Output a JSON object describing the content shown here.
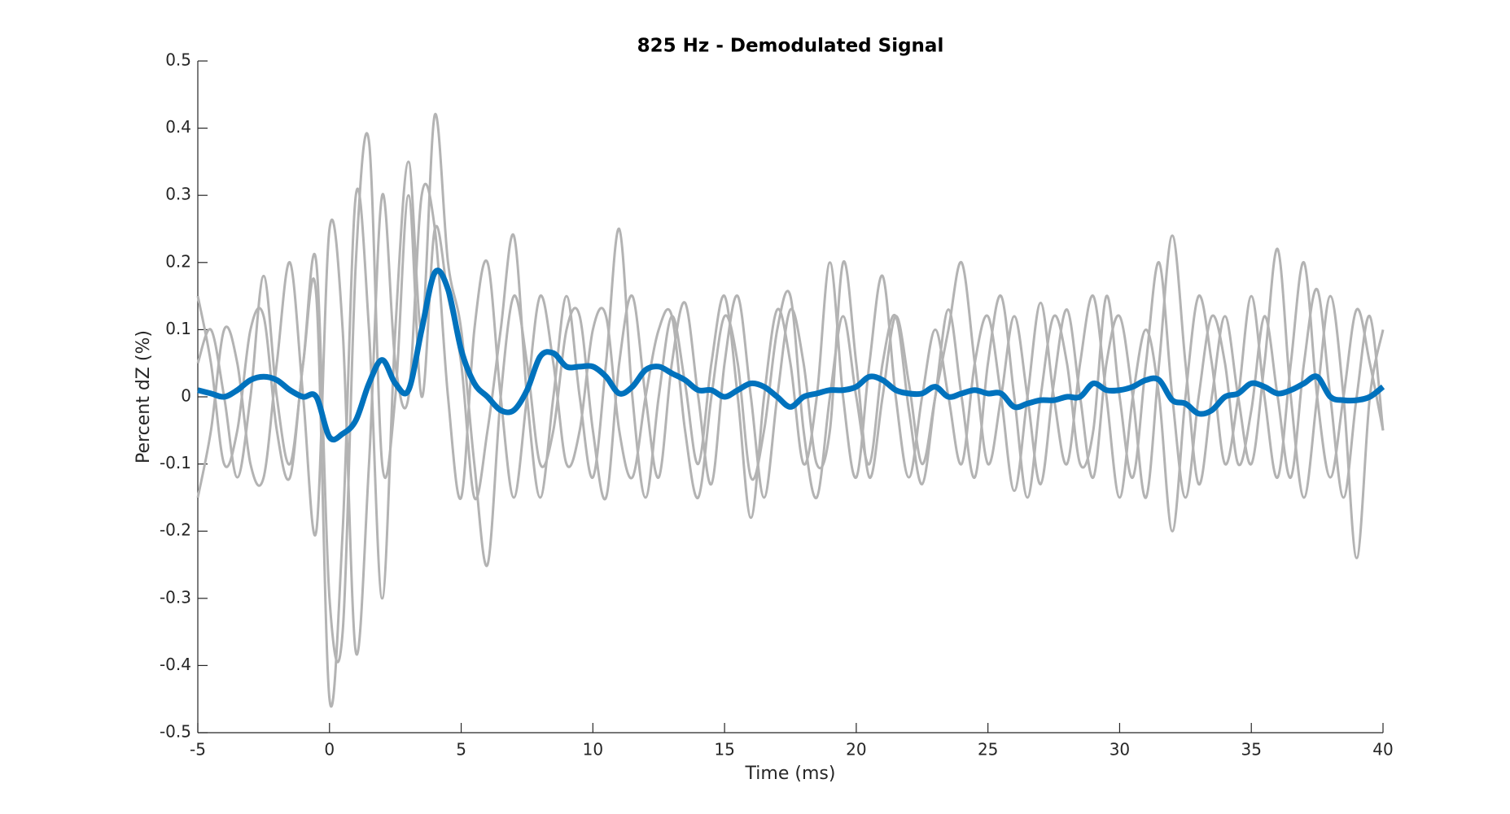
{
  "chart_data": {
    "type": "line",
    "title": "825 Hz - Demodulated Signal",
    "xlabel": "Time (ms)",
    "ylabel": "Percent dZ (%)",
    "xlim": [
      -5,
      40
    ],
    "ylim": [
      -0.5,
      0.5
    ],
    "xticks": [
      -5,
      0,
      5,
      10,
      15,
      20,
      25,
      30,
      35,
      40
    ],
    "yticks": [
      -0.5,
      -0.4,
      -0.3,
      -0.2,
      -0.1,
      0,
      0.1,
      0.2,
      0.3,
      0.4,
      0.5
    ],
    "x": [
      -5,
      -4.5,
      -4,
      -3.5,
      -3,
      -2.5,
      -2,
      -1.5,
      -1,
      -0.5,
      0,
      0.5,
      1,
      1.5,
      2,
      2.5,
      3,
      3.5,
      4,
      4.5,
      5,
      5.5,
      6,
      6.5,
      7,
      7.5,
      8,
      8.5,
      9,
      9.5,
      10,
      10.5,
      11,
      11.5,
      12,
      12.5,
      13,
      13.5,
      14,
      14.5,
      15,
      15.5,
      16,
      16.5,
      17,
      17.5,
      18,
      18.5,
      19,
      19.5,
      20,
      20.5,
      21,
      21.5,
      22,
      22.5,
      23,
      23.5,
      24,
      24.5,
      25,
      25.5,
      26,
      26.5,
      27,
      27.5,
      28,
      28.5,
      29,
      29.5,
      30,
      30.5,
      31,
      31.5,
      32,
      32.5,
      33,
      33.5,
      34,
      34.5,
      35,
      35.5,
      36,
      36.5,
      37,
      37.5,
      38,
      38.5,
      39,
      39.5,
      40
    ],
    "series": [
      {
        "color": "#b3b3b3",
        "values": [
          0.15,
          0.05,
          -0.1,
          -0.05,
          0.1,
          0.12,
          -0.05,
          -0.12,
          0.05,
          0.15,
          -0.45,
          -0.2,
          0.3,
          0.1,
          -0.3,
          0.1,
          0.35,
          0.1,
          0.42,
          0.2,
          0.1,
          -0.1,
          -0.25,
          0.0,
          0.15,
          0.05,
          -0.1,
          -0.05,
          0.1,
          0.12,
          -0.05,
          -0.15,
          0.05,
          0.15,
          0.0,
          -0.12,
          0.05,
          0.14,
          0.0,
          -0.13,
          0.05,
          0.15,
          0.0,
          -0.15,
          0.0,
          0.13,
          0.05,
          -0.1,
          -0.05,
          0.2,
          0.05,
          -0.12,
          0.0,
          0.12,
          0.02,
          -0.1,
          0.0,
          0.1,
          0.2,
          0.05,
          -0.1,
          0.0,
          0.12,
          0.0,
          -0.13,
          0.02,
          0.13,
          0.0,
          -0.12,
          0.05,
          0.12,
          0.0,
          -0.15,
          0.05,
          0.24,
          0.05,
          -0.13,
          0.0,
          0.12,
          0.0,
          -0.1,
          0.05,
          0.22,
          0.0,
          -0.15,
          0.0,
          0.15,
          0.0,
          -0.24,
          0.0,
          0.1
        ]
      },
      {
        "color": "#b3b3b3",
        "values": [
          -0.15,
          -0.05,
          0.1,
          0.05,
          -0.1,
          -0.12,
          0.05,
          0.2,
          0.0,
          -0.2,
          0.25,
          0.1,
          -0.38,
          -0.1,
          0.3,
          0.05,
          0.0,
          0.3,
          0.25,
          0.0,
          -0.15,
          0.1,
          0.2,
          0.0,
          -0.15,
          0.0,
          0.15,
          0.05,
          -0.1,
          -0.05,
          0.1,
          0.12,
          -0.05,
          -0.12,
          0.0,
          0.1,
          0.12,
          -0.05,
          -0.15,
          0.0,
          0.12,
          0.05,
          -0.12,
          -0.05,
          0.1,
          0.15,
          -0.05,
          -0.15,
          0.0,
          0.12,
          0.0,
          -0.1,
          0.05,
          0.12,
          -0.02,
          -0.13,
          0.0,
          0.13,
          0.0,
          -0.12,
          0.05,
          0.15,
          0.0,
          -0.15,
          0.0,
          0.12,
          0.05,
          -0.1,
          -0.05,
          0.15,
          0.0,
          -0.12,
          0.05,
          0.2,
          0.0,
          -0.15,
          0.0,
          0.12,
          0.05,
          -0.1,
          -0.02,
          0.12,
          0.0,
          -0.12,
          0.05,
          0.16,
          0.0,
          -0.15,
          0.0,
          0.12,
          -0.05
        ]
      },
      {
        "color": "#b3b3b3",
        "values": [
          0.05,
          0.1,
          0.0,
          -0.12,
          0.0,
          0.18,
          0.0,
          -0.1,
          0.05,
          0.2,
          -0.3,
          -0.35,
          0.2,
          0.38,
          -0.1,
          0.0,
          0.3,
          0.0,
          0.25,
          0.15,
          0.05,
          -0.15,
          -0.05,
          0.1,
          0.24,
          0.0,
          -0.15,
          0.0,
          0.15,
          0.0,
          -0.12,
          0.05,
          0.25,
          0.0,
          -0.15,
          0.0,
          0.12,
          0.02,
          -0.1,
          0.05,
          0.15,
          0.0,
          -0.18,
          0.0,
          0.13,
          0.05,
          -0.1,
          0.0,
          0.2,
          0.0,
          -0.12,
          0.05,
          0.18,
          0.0,
          -0.12,
          0.0,
          0.1,
          0.0,
          -0.1,
          0.05,
          0.12,
          0.0,
          -0.14,
          0.0,
          0.14,
          0.0,
          -0.1,
          0.05,
          0.15,
          0.0,
          -0.15,
          0.0,
          0.1,
          0.0,
          -0.2,
          0.0,
          0.15,
          0.05,
          -0.1,
          0.0,
          0.15,
          0.0,
          -0.12,
          0.05,
          0.2,
          0.0,
          -0.12,
          0.0,
          0.13,
          0.05,
          -0.05
        ]
      },
      {
        "color": "#0072bd",
        "values": [
          0.01,
          0.005,
          0.0,
          0.01,
          0.025,
          0.03,
          0.025,
          0.01,
          0.0,
          0.0,
          -0.06,
          -0.055,
          -0.035,
          0.02,
          0.055,
          0.02,
          0.01,
          0.1,
          0.185,
          0.16,
          0.07,
          0.02,
          0.0,
          -0.02,
          -0.02,
          0.01,
          0.06,
          0.065,
          0.045,
          0.045,
          0.045,
          0.03,
          0.005,
          0.015,
          0.04,
          0.045,
          0.035,
          0.025,
          0.01,
          0.01,
          0.0,
          0.01,
          0.02,
          0.015,
          0.0,
          -0.015,
          0.0,
          0.005,
          0.01,
          0.01,
          0.015,
          0.03,
          0.025,
          0.01,
          0.005,
          0.005,
          0.015,
          0.0,
          0.005,
          0.01,
          0.005,
          0.005,
          -0.015,
          -0.01,
          -0.005,
          -0.005,
          0.0,
          0.0,
          0.02,
          0.01,
          0.01,
          0.015,
          0.025,
          0.025,
          -0.005,
          -0.01,
          -0.025,
          -0.02,
          0.0,
          0.005,
          0.02,
          0.015,
          0.005,
          0.01,
          0.02,
          0.03,
          0.0,
          -0.005,
          -0.005,
          0.0,
          0.015
        ]
      }
    ]
  }
}
